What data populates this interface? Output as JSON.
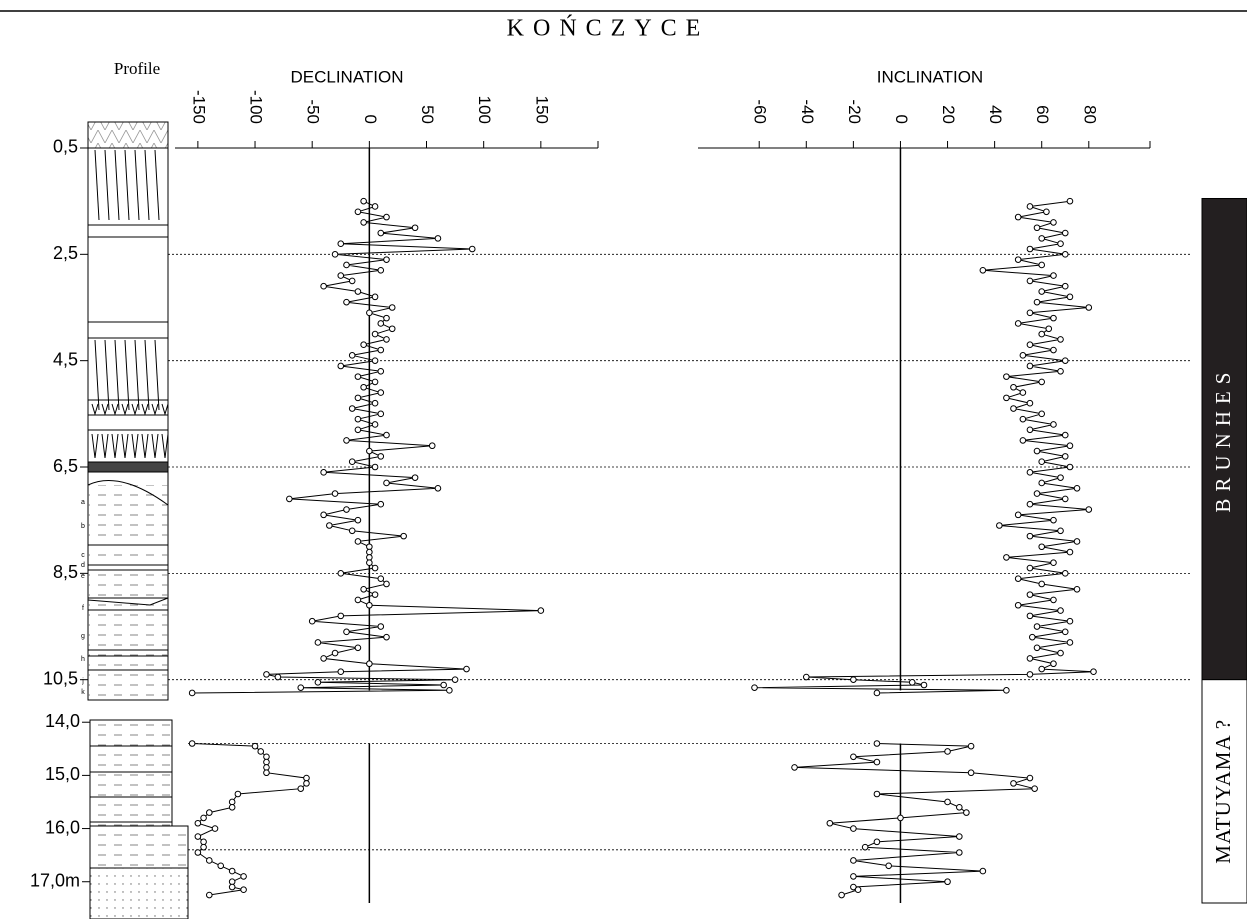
{
  "chart_data": {
    "type": "line",
    "title": "KOŃCZYCE",
    "profile_label": "Profile",
    "lithology_labels": [
      "a",
      "b",
      "c",
      "d",
      "e",
      "f",
      "g",
      "h",
      "j",
      "k"
    ],
    "ylim": [
      0.0,
      17.4
    ],
    "y_break": [
      10.9,
      13.6
    ],
    "yticks": [
      {
        "value": 0.5,
        "label": "0,5"
      },
      {
        "value": 2.5,
        "label": "2,5"
      },
      {
        "value": 4.5,
        "label": "4,5"
      },
      {
        "value": 6.5,
        "label": "6,5"
      },
      {
        "value": 8.5,
        "label": "8,5"
      },
      {
        "value": 10.5,
        "label": "10,5"
      },
      {
        "value": 14.0,
        "label": "14,0"
      },
      {
        "value": 15.0,
        "label": "15,0"
      },
      {
        "value": 16.0,
        "label": "16,0"
      },
      {
        "value": 17.0,
        "label": "17,0m"
      }
    ],
    "reference_lines": [
      2.5,
      4.5,
      6.5,
      8.5,
      10.5,
      14.4,
      16.4
    ],
    "xlim": [
      -170,
      200
    ],
    "xticks": [
      -150,
      -100,
      -50,
      0,
      50,
      100,
      150
    ],
    "x2lim": [
      -86,
      106
    ],
    "x2ticks": [
      -60,
      -40,
      -20,
      0,
      20,
      40,
      60,
      80
    ],
    "depth": [
      1.5,
      1.6,
      1.7,
      1.8,
      1.9,
      2.0,
      2.1,
      2.2,
      2.3,
      2.4,
      2.5,
      2.6,
      2.7,
      2.8,
      2.9,
      3.0,
      3.1,
      3.2,
      3.3,
      3.4,
      3.5,
      3.6,
      3.7,
      3.8,
      3.9,
      4.0,
      4.1,
      4.2,
      4.3,
      4.4,
      4.5,
      4.6,
      4.7,
      4.8,
      4.9,
      5.0,
      5.1,
      5.2,
      5.3,
      5.4,
      5.5,
      5.6,
      5.7,
      5.8,
      5.9,
      6.0,
      6.1,
      6.2,
      6.3,
      6.4,
      6.5,
      6.6,
      6.7,
      6.8,
      6.9,
      7.0,
      7.1,
      7.2,
      7.3,
      7.4,
      7.5,
      7.6,
      7.7,
      7.8,
      7.9,
      8.0,
      8.1,
      8.2,
      8.3,
      8.4,
      8.5,
      8.6,
      8.7,
      8.8,
      8.9,
      9.0,
      9.1,
      9.2,
      9.3,
      9.4,
      9.5,
      9.6,
      9.7,
      9.8,
      9.9,
      10.0,
      10.1,
      10.2,
      10.3,
      10.35,
      10.4,
      10.45,
      10.5,
      10.55,
      10.6,
      10.65,
      10.7,
      10.75,
      null,
      14.4,
      14.45,
      14.55,
      14.65,
      14.75,
      14.85,
      14.95,
      15.05,
      15.15,
      15.25,
      15.35,
      15.5,
      15.6,
      15.7,
      15.8,
      15.9,
      16.0,
      16.15,
      16.25,
      16.35,
      16.45,
      16.6,
      16.7,
      16.8,
      16.9,
      17.0,
      17.1,
      17.15,
      17.25
    ],
    "series": [
      {
        "name": "DECLINATION",
        "color": "#000000",
        "values": [
          -5,
          5,
          -10,
          15,
          -5,
          40,
          10,
          60,
          -25,
          90,
          -30,
          15,
          -20,
          10,
          -25,
          -15,
          -40,
          -10,
          5,
          -20,
          20,
          0,
          15,
          10,
          20,
          5,
          15,
          -5,
          10,
          -15,
          5,
          -25,
          10,
          -10,
          5,
          -5,
          10,
          -10,
          5,
          -15,
          10,
          -10,
          5,
          -10,
          15,
          -20,
          55,
          0,
          10,
          -15,
          5,
          -40,
          40,
          15,
          60,
          -30,
          -70,
          10,
          -20,
          -40,
          -10,
          -35,
          -15,
          30,
          -10,
          0,
          0,
          0,
          0,
          5,
          -25,
          10,
          15,
          -5,
          5,
          -10,
          0,
          150,
          -25,
          -50,
          10,
          -20,
          15,
          -45,
          -10,
          -30,
          -40,
          0,
          85,
          -25,
          -90,
          -80,
          75,
          -45,
          65,
          -60,
          70,
          -155,
          null,
          -155,
          -100,
          -95,
          -90,
          -90,
          -90,
          -90,
          -55,
          -55,
          -60,
          -115,
          -120,
          -120,
          -140,
          -145,
          -150,
          -135,
          -150,
          -145,
          -145,
          -150,
          -140,
          -130,
          -120,
          -110,
          -120,
          -120,
          -110,
          -140
        ]
      },
      {
        "name": "INCLINATION",
        "color": "#000000",
        "axis": "x2",
        "values": [
          72,
          55,
          62,
          50,
          65,
          58,
          70,
          60,
          68,
          55,
          70,
          50,
          60,
          35,
          65,
          55,
          70,
          60,
          72,
          58,
          80,
          55,
          65,
          50,
          63,
          60,
          68,
          55,
          65,
          52,
          70,
          55,
          68,
          45,
          60,
          48,
          52,
          45,
          55,
          48,
          60,
          52,
          65,
          55,
          70,
          52,
          72,
          58,
          70,
          60,
          72,
          55,
          68,
          60,
          75,
          58,
          70,
          55,
          80,
          50,
          65,
          42,
          68,
          55,
          75,
          60,
          72,
          45,
          65,
          55,
          70,
          50,
          60,
          75,
          55,
          65,
          50,
          68,
          55,
          72,
          58,
          70,
          56,
          72,
          58,
          68,
          55,
          65,
          60,
          82,
          55,
          -40,
          -20,
          5,
          10,
          -62,
          45,
          -10,
          null,
          -10,
          30,
          20,
          -20,
          -10,
          -45,
          30,
          55,
          48,
          57,
          -10,
          20,
          25,
          28,
          0,
          -30,
          -20,
          25,
          -10,
          -15,
          25,
          -20,
          -5,
          35,
          -20,
          20,
          -20,
          -18,
          -25
        ]
      }
    ],
    "polarity": [
      {
        "label": "BRUNHES",
        "color": "#231f20",
        "text_color": "#ffffff",
        "from": 1.45,
        "to": 10.5
      },
      {
        "label": "MATUYAMA ?",
        "color": "#ffffff",
        "text_color": "#000000",
        "from": 10.5,
        "to": 17.4
      }
    ]
  }
}
